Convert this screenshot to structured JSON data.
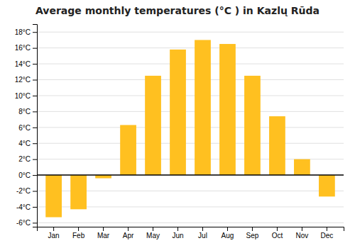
{
  "chart_data": {
    "type": "bar",
    "title": "Average monthly temperatures (°C ) in Kazlų Rūda",
    "categories": [
      "Jan",
      "Feb",
      "Mar",
      "Apr",
      "May",
      "Jun",
      "Jul",
      "Aug",
      "Sep",
      "Oct",
      "Nov",
      "Dec"
    ],
    "values": [
      -5.3,
      -4.3,
      -0.4,
      6.3,
      12.5,
      15.8,
      17.0,
      16.5,
      12.5,
      7.4,
      2.0,
      -2.7
    ],
    "color": "#FFC020",
    "ylim": [
      -6.5,
      19.0
    ],
    "yticks": [
      {
        "value": -6,
        "label": "-6°C"
      },
      {
        "value": -4,
        "label": "-4°C"
      },
      {
        "value": -2,
        "label": "-2°C"
      },
      {
        "value": 0,
        "label": "0°C"
      },
      {
        "value": 2,
        "label": "2°C"
      },
      {
        "value": 4,
        "label": "4°C"
      },
      {
        "value": 6,
        "label": "6°C"
      },
      {
        "value": 8,
        "label": "8°C"
      },
      {
        "value": 10,
        "label": "10°C"
      },
      {
        "value": 12,
        "label": "12°C"
      },
      {
        "value": 14,
        "label": "14°C"
      },
      {
        "value": 16,
        "label": "16°C"
      },
      {
        "value": 18,
        "label": "18°C"
      }
    ],
    "grid": true
  }
}
